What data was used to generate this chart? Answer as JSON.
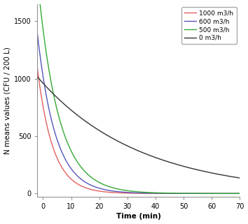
{
  "title": "",
  "xlabel": "Time (min)",
  "ylabel": "N means values (CFU / 200 L)",
  "xlim": [
    -2,
    70
  ],
  "ylim": [
    -30,
    1650
  ],
  "xticks": [
    0,
    10,
    20,
    30,
    40,
    50,
    60,
    70
  ],
  "yticks": [
    0,
    500,
    1000,
    1500
  ],
  "series": [
    {
      "label": "1000 m3/h",
      "color": "#e06060",
      "N0": 760,
      "k": 0.18
    },
    {
      "label": "600 m3/h",
      "color": "#5555bb",
      "N0": 1020,
      "k": 0.155
    },
    {
      "label": "500 m3/h",
      "color": "#33aa33",
      "N0": 1430,
      "k": 0.135
    },
    {
      "label": "0 m3/h",
      "color": "#333333",
      "N0": 960,
      "k": 0.028
    }
  ],
  "legend_loc": "upper right",
  "legend_fontsize": 6.5,
  "tick_fontsize": 7,
  "label_fontsize": 7.5,
  "linewidth": 1.0,
  "background_color": "#ffffff",
  "figsize": [
    3.54,
    3.21
  ],
  "dpi": 100
}
